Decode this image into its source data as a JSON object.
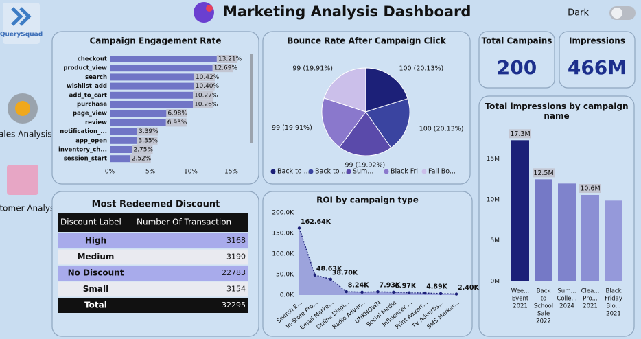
{
  "header": {
    "title": "Marketing Analysis Dashboard",
    "brand": "QuerySquad",
    "toggle": "Dark"
  },
  "nav": [
    "Sales Analysis",
    "Customer Analysis"
  ],
  "cards": [
    {
      "label": "Total Campains",
      "value": 200
    },
    {
      "label": "Impressions",
      "value": "466M"
    }
  ],
  "table": {
    "title": "Most Redeemed Discount",
    "columns": [
      "Discount Label",
      "Number Of Transaction"
    ],
    "rows": [
      [
        "High",
        3168
      ],
      [
        "Medium",
        3190
      ],
      [
        "No Discount",
        22783
      ],
      [
        "Small",
        3154
      ],
      [
        "Total",
        32295
      ]
    ]
  },
  "chart_data": [
    {
      "type": "hbar",
      "title": "Campaign Engagement Rate",
      "color": "#7075c6",
      "categories": [
        "checkout",
        "product_view",
        "search",
        "wishlist_add",
        "add_to_cart",
        "purchase",
        "page_view",
        "review",
        "notification_...",
        "app_open",
        "inventory_ch...",
        "session_start"
      ],
      "values": [
        13.21,
        12.69,
        10.42,
        10.4,
        10.27,
        10.26,
        6.98,
        6.93,
        3.39,
        3.35,
        2.75,
        2.52
      ],
      "value_labels": [
        "13.21%",
        "12.69%",
        "10.42%",
        "10.40%",
        "10.27%",
        "10.26%",
        "6.98%",
        "6.93%",
        "3.39%",
        "3.35%",
        "2.75%",
        "2.52%"
      ],
      "xlim": [
        0,
        15
      ],
      "xticks": [
        {
          "value": 0,
          "label": "0%"
        },
        {
          "value": 5,
          "label": "5%"
        },
        {
          "value": 10,
          "label": "10%"
        },
        {
          "value": 15,
          "label": "15%"
        }
      ]
    },
    {
      "type": "pie",
      "title": "Bounce Rate After Campaign Click",
      "series": [
        {
          "name": "Back to ...",
          "color": "#1c2078"
        },
        {
          "name": "Back to ...",
          "color": "#3a44a0"
        },
        {
          "name": "Sum...",
          "color": "#5a4aaa"
        },
        {
          "name": "Black Fri...",
          "color": "#8a78cc"
        },
        {
          "name": "Fall Bo...",
          "color": "#cbbfea"
        }
      ],
      "values": [
        20.13,
        20.13,
        19.92,
        19.91,
        19.91
      ],
      "value_labels": [
        "100 (20.13%)",
        "100 (20.13%)",
        "99 (19.92%)",
        "99 (19.91%)",
        "99 (19.91%)"
      ]
    },
    {
      "type": "area",
      "title": "ROI by campaign type",
      "color": "#1c2078",
      "fill": "#8e93d6",
      "categories": [
        "Search E...",
        "In-Store Pro...",
        "Email Marke...",
        "Online Displ...",
        "Radio Adver...",
        "UNKNOWN",
        "Social Media",
        "Influencer ...",
        "Print Advert...",
        "TV Advertis...",
        "SMS Market..."
      ],
      "values": [
        162640,
        48630,
        38700,
        8240,
        7000,
        7930,
        6970,
        5500,
        4890,
        3500,
        2400
      ],
      "value_labels": [
        "162.64K",
        "48.63K",
        "38.70K",
        "8.24K",
        null,
        "7.93K",
        "6.97K",
        null,
        "4.89K",
        null,
        "2.40K"
      ],
      "ylim": [
        0,
        200000
      ],
      "yticks": [
        {
          "value": 0,
          "label": "0.0K"
        },
        {
          "value": 50000,
          "label": "50.0K"
        },
        {
          "value": 100000,
          "label": "100.0K"
        },
        {
          "value": 150000,
          "label": "150.0K"
        },
        {
          "value": 200000,
          "label": "200.0K"
        }
      ]
    },
    {
      "type": "bar",
      "title": "Total impressions by campaign name",
      "categories": [
        [
          "Wee...",
          "Event",
          "2021"
        ],
        [
          "Back",
          "to",
          "School",
          "Sale",
          "2022"
        ],
        [
          "Sum...",
          "Colle...",
          "2024"
        ],
        [
          "Clea...",
          "Pro...",
          "2021"
        ],
        [
          "Black",
          "Friday",
          "Blo...",
          "2021"
        ]
      ],
      "values": [
        17300000,
        12500000,
        12000000,
        10600000,
        9900000
      ],
      "value_labels": [
        "17.3M",
        "12.5M",
        null,
        "10.6M",
        null
      ],
      "colors": [
        "#1c2078",
        "#7579c6",
        "#7f83cc",
        "#8b8fd4",
        "#9599da"
      ],
      "ylim": [
        0,
        18000000
      ],
      "yticks": [
        {
          "value": 0,
          "label": "0M"
        },
        {
          "value": 5000000,
          "label": "5M"
        },
        {
          "value": 10000000,
          "label": "10M"
        },
        {
          "value": 15000000,
          "label": "15M"
        }
      ]
    }
  ]
}
